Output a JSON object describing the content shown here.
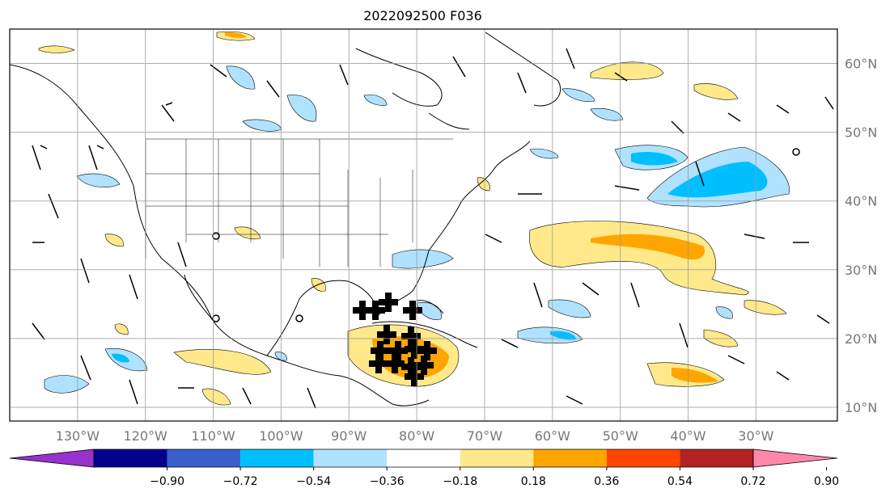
{
  "title": "2022092500 F036",
  "map": {
    "lon_range": [
      -140,
      -18
    ],
    "lat_range": [
      8,
      65
    ],
    "lon_ticks": [
      "130°W",
      "120°W",
      "110°W",
      "100°W",
      "90°W",
      "80°W",
      "70°W",
      "60°W",
      "50°W",
      "40°W",
      "30°W"
    ],
    "lon_tick_values": [
      -130,
      -120,
      -110,
      -100,
      -90,
      -80,
      -70,
      -60,
      -50,
      -40,
      -30
    ],
    "lat_ticks": [
      "10°N",
      "20°N",
      "30°N",
      "40°N",
      "50°N",
      "60°N"
    ],
    "lat_tick_values": [
      10,
      20,
      30,
      40,
      50,
      60
    ],
    "grid": true,
    "storm_marker": "black cross cluster over western Caribbean near 15-23°N, 80-90°W",
    "fields": "shaded anomaly contours with wind barbs"
  },
  "colorbar": {
    "levels": [
      "−0.90",
      "−0.72",
      "−0.54",
      "−0.36",
      "−0.18",
      "0.18",
      "0.36",
      "0.54",
      "0.72",
      "0.90"
    ],
    "colors": [
      "#9932cc",
      "#00008b",
      "#3a5fcd",
      "#00bfff",
      "#b0e2ff",
      "#ffffff",
      "#ffe98a",
      "#ffa500",
      "#ff4500",
      "#b22222",
      "#ff88aa"
    ],
    "extend": "both"
  }
}
